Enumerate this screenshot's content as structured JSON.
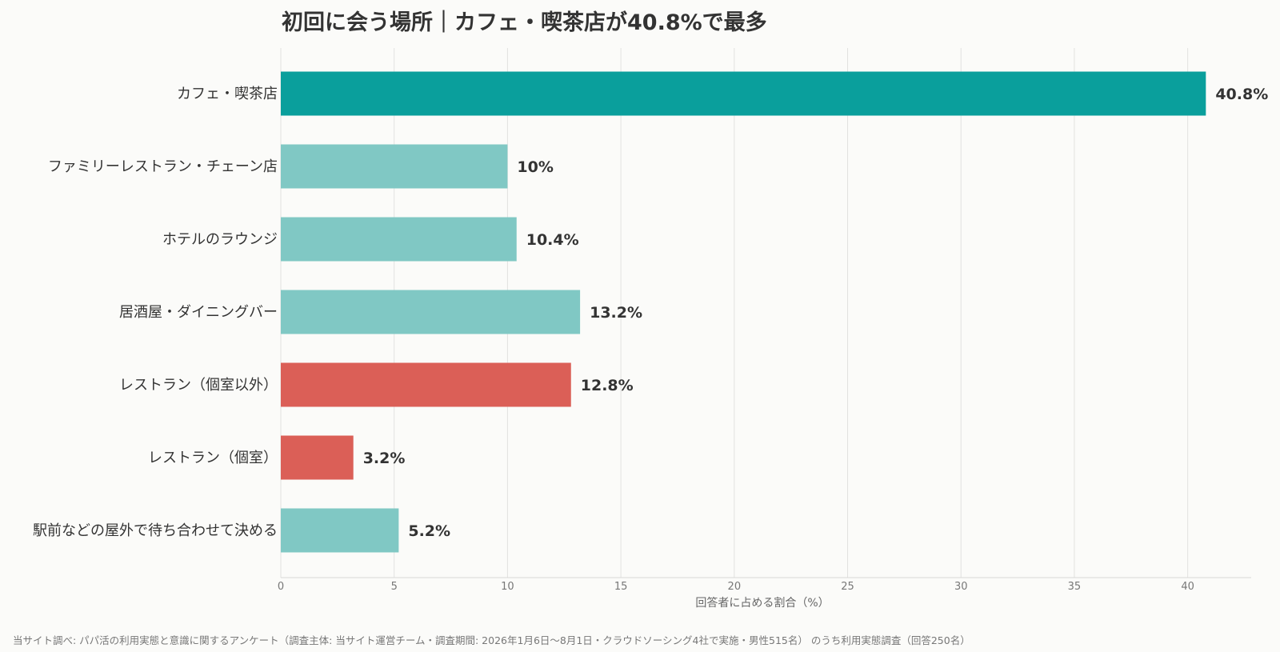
{
  "chart_data": {
    "type": "bar",
    "orientation": "horizontal",
    "title": "初回に会う場所｜カフェ・喫茶店が40.8%で最多",
    "categories": [
      "カフェ・喫茶店",
      "ファミリーレストラン・チェーン店",
      "ホテルのラウンジ",
      "居酒屋・ダイニングバー",
      "レストラン（個室以外）",
      "レストラン（個室）",
      "駅前などの屋外で待ち合わせて決める"
    ],
    "values": [
      40.8,
      10,
      10.4,
      13.2,
      12.8,
      3.2,
      5.2
    ],
    "value_labels": [
      "40.8%",
      "10%",
      "10.4%",
      "13.2%",
      "12.8%",
      "3.2%",
      "5.2%"
    ],
    "colors": [
      "#0a9f9c",
      "#80c8c4",
      "#80c8c4",
      "#80c8c4",
      "#db5f57",
      "#db5f57",
      "#80c8c4"
    ],
    "xlabel": "回答者に占める割合（%）",
    "ylabel": "",
    "xlim": [
      0,
      42.8
    ],
    "xticks": [
      0,
      5,
      10,
      15,
      20,
      25,
      30,
      35,
      40
    ],
    "grid": true
  },
  "source": "当サイト調べ: パパ活の利用実態と意識に関するアンケート（調査主体: 当サイト運営チーム・調査期間: 2026年1月6日〜8月1日・クラウドソーシング4社で実施・男性515名） のうち利用実態調査（回答250名）"
}
